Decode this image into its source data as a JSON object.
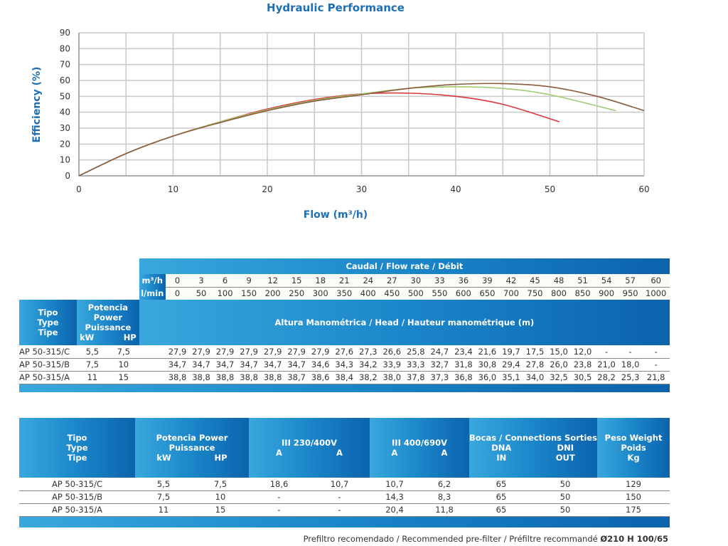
{
  "chart_data": {
    "type": "line",
    "title": "Hydraulic Performance",
    "xlabel": "Flow (m³/h)",
    "ylabel": "Efficiency (%)",
    "xlim": [
      0,
      60
    ],
    "ylim": [
      0,
      90
    ],
    "xticks": [
      "0",
      "10",
      "20",
      "30",
      "40",
      "50",
      "60"
    ],
    "yticks": [
      "0",
      "10",
      "20",
      "30",
      "40",
      "50",
      "60",
      "70",
      "80",
      "90"
    ],
    "grid": true,
    "series": [
      {
        "name": "AP 50-315/C",
        "color": "#d9363e",
        "x": [
          0,
          5,
          10,
          15,
          20,
          25,
          30,
          35,
          40,
          45,
          51
        ],
        "y": [
          0,
          14,
          25,
          34,
          42,
          48,
          51.5,
          52,
          50,
          45,
          34
        ]
      },
      {
        "name": "AP 50-315/B",
        "color": "#9ccd6e",
        "x": [
          0,
          5,
          10,
          15,
          20,
          25,
          30,
          35,
          40,
          45,
          50,
          57
        ],
        "y": [
          0,
          14,
          25,
          34,
          41.5,
          47.5,
          51.5,
          55,
          56,
          55,
          51,
          41
        ]
      },
      {
        "name": "AP 50-315/A",
        "color": "#8b5a3c",
        "x": [
          0,
          5,
          10,
          15,
          20,
          25,
          30,
          35,
          40,
          45,
          50,
          55,
          60
        ],
        "y": [
          0,
          14,
          25,
          33.5,
          41,
          47,
          51,
          55,
          57.5,
          58,
          56,
          50,
          41
        ]
      }
    ]
  },
  "table1": {
    "flow_title": "Caudal / Flow rate / Débit",
    "unit_m3h": "m³/h",
    "unit_lmin": "l/min",
    "m3h": [
      "0",
      "3",
      "6",
      "9",
      "12",
      "15",
      "18",
      "21",
      "24",
      "27",
      "30",
      "33",
      "36",
      "39",
      "42",
      "45",
      "48",
      "51",
      "54",
      "57",
      "60"
    ],
    "lmin": [
      "0",
      "50",
      "100",
      "150",
      "200",
      "250",
      "300",
      "350",
      "400",
      "450",
      "500",
      "550",
      "600",
      "650",
      "700",
      "750",
      "800",
      "850",
      "900",
      "950",
      "1000"
    ],
    "type_header": "Tipo Type Tipe",
    "power_header": "Potencia Power Puissance",
    "kw": "kW",
    "hp": "HP",
    "head_title": "Altura Manométrica / Head / Hauteur manométrique (m)",
    "rows": [
      {
        "type": "AP 50-315/C",
        "kw": "5,5",
        "hp": "7,5",
        "head": [
          "27,9",
          "27,9",
          "27,9",
          "27,9",
          "27,9",
          "27,9",
          "27,9",
          "27,6",
          "27,3",
          "26,6",
          "25,8",
          "24,7",
          "23,4",
          "21,6",
          "19,7",
          "17,5",
          "15,0",
          "12,0",
          "-",
          "-",
          "-"
        ]
      },
      {
        "type": "AP 50-315/B",
        "kw": "7,5",
        "hp": "10",
        "head": [
          "34,7",
          "34,7",
          "34,7",
          "34,7",
          "34,7",
          "34,7",
          "34,6",
          "34,3",
          "34,2",
          "33,9",
          "33,3",
          "32,7",
          "31,8",
          "30,8",
          "29,4",
          "27,8",
          "26,0",
          "23,8",
          "21,0",
          "18,0",
          "-"
        ]
      },
      {
        "type": "AP 50-315/A",
        "kw": "11",
        "hp": "15",
        "head": [
          "38,8",
          "38,8",
          "38,8",
          "38,8",
          "38,8",
          "38,7",
          "38,6",
          "38,4",
          "38,2",
          "38,0",
          "37,8",
          "37,3",
          "36,8",
          "36,0",
          "35,1",
          "34,0",
          "32,5",
          "30,5",
          "28,2",
          "25,3",
          "21,8"
        ]
      }
    ]
  },
  "table2": {
    "type_header": "Tipo Type Tipe",
    "power_header": "Potencia Power Puissance",
    "kw": "kW",
    "hp": "HP",
    "v230": "III 230/400V",
    "v400": "III 400/690V",
    "amp": "A",
    "conn": "Bocas / Connections Sorties",
    "dna": "DNA",
    "dni": "DNI",
    "in": "IN",
    "out": "OUT",
    "weight": "Peso Weight Poids",
    "kg": "Kg",
    "rows": [
      [
        "AP 50-315/C",
        "5,5",
        "7,5",
        "18,6",
        "10,7",
        "10,7",
        "6,2",
        "65",
        "50",
        "129"
      ],
      [
        "AP 50-315/B",
        "7,5",
        "10",
        "-",
        "-",
        "14,3",
        "8,3",
        "65",
        "50",
        "150"
      ],
      [
        "AP 50-315/A",
        "11",
        "15",
        "-",
        "-",
        "20,4",
        "11,8",
        "65",
        "50",
        "175"
      ]
    ]
  },
  "footer": {
    "text": "Prefiltro recomendado / Recommended pre-filter / Préfiltre recommandé ",
    "bold": "Ø210 H 100/65"
  }
}
